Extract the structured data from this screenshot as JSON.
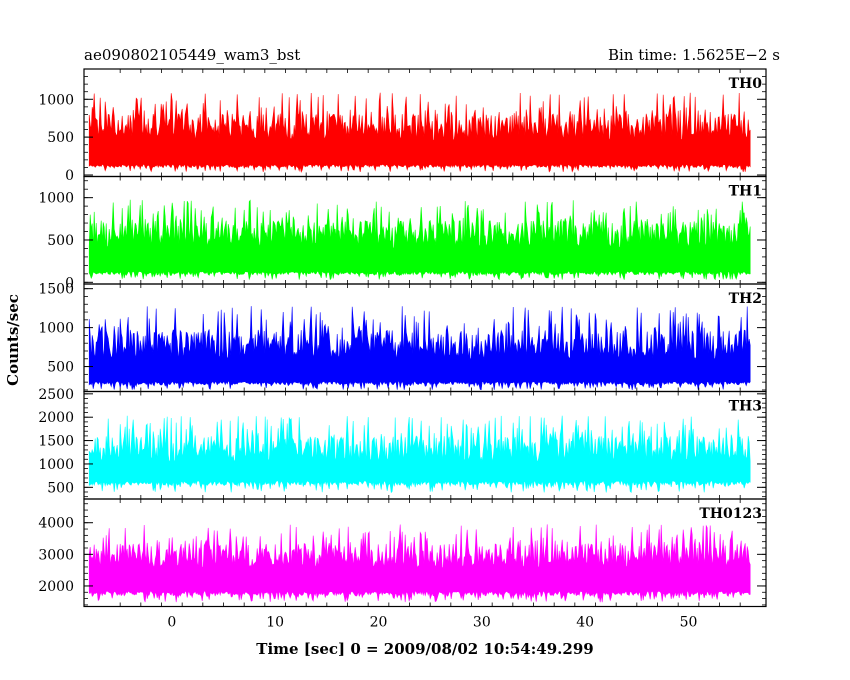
{
  "chart_data": {
    "type": "line",
    "title_left": "ae090802105449_wam3_bst",
    "title_right": "Bin time: 1.5625E−2 s",
    "xlabel": "Time [sec] 0 = 2009/08/02 10:54:49.299",
    "ylabel": "Counts/sec",
    "xlim": [
      -8.5,
      57.5
    ],
    "x_ticks": [
      0,
      10,
      20,
      30,
      40,
      50
    ],
    "x_data_range": [
      -8.0,
      56.0
    ],
    "bin_time": 0.015625,
    "panels": [
      {
        "name": "TH0",
        "color": "#ff0000",
        "ylim": [
          -20,
          1400
        ],
        "y_ticks": [
          0,
          500,
          1000
        ],
        "base": 140,
        "low": 40,
        "high": 1300,
        "mean": 560,
        "spread": 330
      },
      {
        "name": "TH1",
        "color": "#00ff00",
        "ylim": [
          -20,
          1250
        ],
        "y_ticks": [
          0,
          500,
          1000
        ],
        "base": 130,
        "low": 30,
        "high": 1220,
        "mean": 500,
        "spread": 300
      },
      {
        "name": "TH2",
        "color": "#0000ff",
        "ylim": [
          180,
          1560
        ],
        "y_ticks": [
          500,
          1000,
          1500
        ],
        "base": 310,
        "low": 200,
        "high": 1540,
        "mean": 700,
        "spread": 360
      },
      {
        "name": "TH3",
        "color": "#00ffff",
        "ylim": [
          250,
          2550
        ],
        "y_ticks": [
          500,
          1000,
          1500,
          2000,
          2500
        ],
        "base": 640,
        "low": 390,
        "high": 2480,
        "mean": 1200,
        "spread": 520
      },
      {
        "name": "TH0123",
        "color": "#ff00ff",
        "ylim": [
          1350,
          4750
        ],
        "y_ticks": [
          2000,
          3000,
          4000
        ],
        "base": 1840,
        "low": 1480,
        "high": 4620,
        "mean": 2800,
        "spread": 720
      }
    ]
  }
}
